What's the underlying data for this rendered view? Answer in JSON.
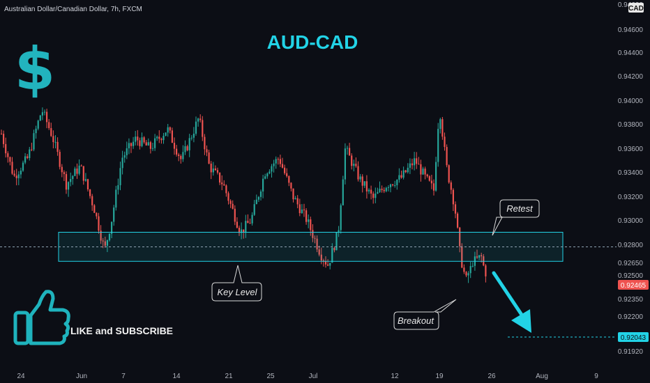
{
  "symbol_title": "Australian Dollar/Canadian Dollar, 7h, FXCM",
  "currency_badge": "CAD",
  "colors": {
    "up": "#26a69a",
    "down": "#ef5350",
    "accent": "#22d3e6",
    "zone": "#22d3e6"
  },
  "icons": [
    "dollar-sign-icon",
    "thumbs-up-icon"
  ],
  "chart_data": {
    "type": "candlestick",
    "title": "AUD-CAD",
    "dollar_glyph": "$",
    "price_axis_labels": [
      "0.94620",
      "0.94600",
      "0.94400",
      "0.94200",
      "0.94000",
      "0.93800",
      "0.93600",
      "0.93400",
      "0.93200",
      "0.93000",
      "0.92800",
      "0.92650",
      "0.92500",
      "0.92350",
      "0.92200",
      "0.91920"
    ],
    "time_axis_labels": [
      "24",
      "Jun",
      "7",
      "14",
      "21",
      "25",
      "Jul",
      "12",
      "19",
      "26",
      "Aug",
      "9"
    ],
    "ylim": [
      0.9192,
      0.9472
    ],
    "key_level_zone": [
      0.9266,
      0.929
    ],
    "dashed_levels": [
      0.9278,
      0.92043
    ],
    "current_price": "0.92465",
    "target_price": "0.92043",
    "annotations": {
      "retest": "Retest",
      "key_level": "Key Level",
      "breakout": "Breakout"
    },
    "cta": "LIKE and SUBSCRIBE"
  }
}
